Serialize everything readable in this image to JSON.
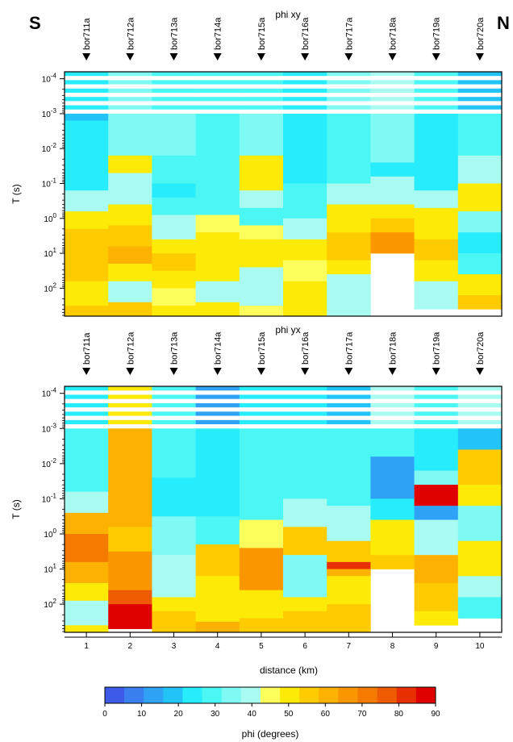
{
  "corner_left": "S",
  "corner_right": "N",
  "colorbar": {
    "label": "phi (degrees)",
    "ticks": [
      0,
      10,
      20,
      30,
      40,
      50,
      60,
      70,
      80,
      90
    ],
    "colors": [
      "#3d5be6",
      "#3a7ff0",
      "#30a2f5",
      "#22c4f7",
      "#27ecfb",
      "#4bf7f5",
      "#7ef9f3",
      "#a9fbf1",
      "#fdfd5c",
      "#fdea07",
      "#fdcb00",
      "#fdb100",
      "#fa9600",
      "#f57a00",
      "#ef5b00",
      "#e82f00",
      "#e00000"
    ]
  },
  "chart_data": [
    {
      "type": "heatmap",
      "title": "phi xy",
      "xlabel": "",
      "ylabel": "T (s)",
      "stations": [
        "bor711a",
        "bor712a",
        "bor713a",
        "bor714a",
        "bor715a",
        "bor716a",
        "bor717a",
        "bor718a",
        "bor719a",
        "bor720a"
      ],
      "yscale": "log",
      "ylim_exp": [
        -4.2,
        2.8
      ],
      "y_ticks": [
        "10^-4",
        "10^-3",
        "10^-2",
        "10^-1",
        "10^0",
        "10^1",
        "10^2"
      ],
      "x_ticks": [
        1,
        2,
        3,
        4,
        5,
        6,
        7,
        8,
        9,
        10
      ],
      "columns": [
        {
          "station": "bor711a",
          "segments": [
            {
              "to_exp": -3.0,
              "phi": 22
            },
            {
              "to_exp": -2.8,
              "phi": 18
            },
            {
              "to_exp": -0.8,
              "phi": 22
            },
            {
              "to_exp": -0.2,
              "phi": 38
            },
            {
              "to_exp": 0.3,
              "phi": 48
            },
            {
              "to_exp": 1.2,
              "phi": 58
            },
            {
              "to_exp": 1.8,
              "phi": 54
            },
            {
              "to_exp": 2.5,
              "phi": 50
            },
            {
              "to_exp": 2.8,
              "phi": 56
            }
          ]
        },
        {
          "station": "bor712a",
          "segments": [
            {
              "to_exp": -2.8,
              "phi": 35
            },
            {
              "to_exp": -1.8,
              "phi": 32
            },
            {
              "to_exp": -1.3,
              "phi": 50
            },
            {
              "to_exp": -0.4,
              "phi": 42
            },
            {
              "to_exp": 0.2,
              "phi": 48
            },
            {
              "to_exp": 0.8,
              "phi": 55
            },
            {
              "to_exp": 1.3,
              "phi": 62
            },
            {
              "to_exp": 1.8,
              "phi": 50
            },
            {
              "to_exp": 2.4,
              "phi": 42
            },
            {
              "to_exp": 2.8,
              "phi": 56
            }
          ]
        },
        {
          "station": "bor713a",
          "segments": [
            {
              "to_exp": -3.0,
              "phi": 27
            },
            {
              "to_exp": -1.8,
              "phi": 32
            },
            {
              "to_exp": -1.0,
              "phi": 28
            },
            {
              "to_exp": -0.6,
              "phi": 22
            },
            {
              "to_exp": -0.1,
              "phi": 30
            },
            {
              "to_exp": 0.6,
              "phi": 40
            },
            {
              "to_exp": 1.0,
              "phi": 50
            },
            {
              "to_exp": 1.5,
              "phi": 58
            },
            {
              "to_exp": 2.0,
              "phi": 52
            },
            {
              "to_exp": 2.5,
              "phi": 45
            },
            {
              "to_exp": 2.8,
              "phi": 50
            }
          ]
        },
        {
          "station": "bor714a",
          "segments": [
            {
              "to_exp": -3.0,
              "phi": 30
            },
            {
              "to_exp": -1.2,
              "phi": 28
            },
            {
              "to_exp": -0.1,
              "phi": 30
            },
            {
              "to_exp": 0.4,
              "phi": 45
            },
            {
              "to_exp": 1.4,
              "phi": 52
            },
            {
              "to_exp": 1.8,
              "phi": 48
            },
            {
              "to_exp": 2.4,
              "phi": 42
            },
            {
              "to_exp": 2.8,
              "phi": 50
            }
          ]
        },
        {
          "station": "bor715a",
          "segments": [
            {
              "to_exp": -3.0,
              "phi": 30
            },
            {
              "to_exp": -1.8,
              "phi": 35
            },
            {
              "to_exp": -0.8,
              "phi": 48
            },
            {
              "to_exp": -0.3,
              "phi": 42
            },
            {
              "to_exp": 0.2,
              "phi": 30
            },
            {
              "to_exp": 0.6,
              "phi": 45
            },
            {
              "to_exp": 1.4,
              "phi": 52
            },
            {
              "to_exp": 2.5,
              "phi": 40
            },
            {
              "to_exp": 2.8,
              "phi": 45
            }
          ]
        },
        {
          "station": "bor716a",
          "segments": [
            {
              "to_exp": -3.0,
              "phi": 24
            },
            {
              "to_exp": -1.0,
              "phi": 22
            },
            {
              "to_exp": 0.0,
              "phi": 30
            },
            {
              "to_exp": 0.6,
              "phi": 38
            },
            {
              "to_exp": 1.2,
              "phi": 52
            },
            {
              "to_exp": 1.8,
              "phi": 44
            },
            {
              "to_exp": 2.8,
              "phi": 50
            }
          ]
        },
        {
          "station": "bor717a",
          "segments": [
            {
              "to_exp": -2.2,
              "phi": 32
            },
            {
              "to_exp": -1.0,
              "phi": 28
            },
            {
              "to_exp": -0.4,
              "phi": 38
            },
            {
              "to_exp": 0.4,
              "phi": 50
            },
            {
              "to_exp": 1.2,
              "phi": 56
            },
            {
              "to_exp": 1.6,
              "phi": 48
            },
            {
              "to_exp": 2.4,
              "phi": 40
            },
            {
              "to_exp": 2.8,
              "phi": 38
            }
          ]
        },
        {
          "station": "bor718a",
          "segments": [
            {
              "to_exp": -3.0,
              "phi": 40
            },
            {
              "to_exp": -1.6,
              "phi": 32
            },
            {
              "to_exp": -1.2,
              "phi": 25
            },
            {
              "to_exp": -0.4,
              "phi": 40
            },
            {
              "to_exp": 0.0,
              "phi": 52
            },
            {
              "to_exp": 0.4,
              "phi": 58
            },
            {
              "to_exp": 1.0,
              "phi": 65
            },
            {
              "to_exp": 1.0,
              "phi": 65
            }
          ]
        },
        {
          "station": "bor719a",
          "segments": [
            {
              "to_exp": -3.0,
              "phi": 30
            },
            {
              "to_exp": -0.8,
              "phi": 22
            },
            {
              "to_exp": -0.3,
              "phi": 38
            },
            {
              "to_exp": 0.6,
              "phi": 48
            },
            {
              "to_exp": 1.2,
              "phi": 56
            },
            {
              "to_exp": 1.8,
              "phi": 48
            },
            {
              "to_exp": 2.6,
              "phi": 40
            }
          ]
        },
        {
          "station": "bor720a",
          "segments": [
            {
              "to_exp": -3.0,
              "phi": 20
            },
            {
              "to_exp": -1.8,
              "phi": 28
            },
            {
              "to_exp": -1.0,
              "phi": 38
            },
            {
              "to_exp": -0.2,
              "phi": 52
            },
            {
              "to_exp": 0.4,
              "phi": 35
            },
            {
              "to_exp": 1.0,
              "phi": 24
            },
            {
              "to_exp": 1.6,
              "phi": 30
            },
            {
              "to_exp": 2.2,
              "phi": 50
            },
            {
              "to_exp": 2.6,
              "phi": 55
            }
          ]
        }
      ]
    },
    {
      "type": "heatmap",
      "title": "phi yx",
      "xlabel": "distance (km)",
      "ylabel": "T (s)",
      "stations": [
        "bor711a",
        "bor712a",
        "bor713a",
        "bor714a",
        "bor715a",
        "bor716a",
        "bor717a",
        "bor718a",
        "bor719a",
        "bor720a"
      ],
      "yscale": "log",
      "ylim_exp": [
        -4.2,
        2.8
      ],
      "y_ticks": [
        "10^-4",
        "10^-3",
        "10^-2",
        "10^-1",
        "10^0",
        "10^1",
        "10^2"
      ],
      "x_ticks": [
        1,
        2,
        3,
        4,
        5,
        6,
        7,
        8,
        9,
        10
      ],
      "columns": [
        {
          "station": "bor711a",
          "segments": [
            {
              "to_exp": -3.0,
              "phi": 22
            },
            {
              "to_exp": -1.2,
              "phi": 28
            },
            {
              "to_exp": -0.6,
              "phi": 40
            },
            {
              "to_exp": 0.0,
              "phi": 60
            },
            {
              "to_exp": 0.8,
              "phi": 72
            },
            {
              "to_exp": 1.4,
              "phi": 62
            },
            {
              "to_exp": 1.9,
              "phi": 48
            },
            {
              "to_exp": 2.6,
              "phi": 40
            },
            {
              "to_exp": 2.8,
              "phi": 52
            }
          ]
        },
        {
          "station": "bor712a",
          "segments": [
            {
              "to_exp": -2.8,
              "phi": 52
            },
            {
              "to_exp": -0.2,
              "phi": 60
            },
            {
              "to_exp": 0.5,
              "phi": 58
            },
            {
              "to_exp": 1.6,
              "phi": 68
            },
            {
              "to_exp": 2.0,
              "phi": 75
            },
            {
              "to_exp": 2.7,
              "phi": 88
            }
          ]
        },
        {
          "station": "bor713a",
          "segments": [
            {
              "to_exp": -3.0,
              "phi": 30
            },
            {
              "to_exp": -1.6,
              "phi": 28
            },
            {
              "to_exp": -0.5,
              "phi": 24
            },
            {
              "to_exp": 0.6,
              "phi": 32
            },
            {
              "to_exp": 1.8,
              "phi": 38
            },
            {
              "to_exp": 2.2,
              "phi": 52
            },
            {
              "to_exp": 2.6,
              "phi": 58
            },
            {
              "to_exp": 2.8,
              "phi": 56
            }
          ]
        },
        {
          "station": "bor714a",
          "segments": [
            {
              "to_exp": -2.6,
              "phi": 15
            },
            {
              "to_exp": -0.5,
              "phi": 22
            },
            {
              "to_exp": 0.3,
              "phi": 30
            },
            {
              "to_exp": 1.2,
              "phi": 56
            },
            {
              "to_exp": 1.8,
              "phi": 52
            },
            {
              "to_exp": 2.5,
              "phi": 48
            },
            {
              "to_exp": 2.8,
              "phi": 60
            }
          ]
        },
        {
          "station": "bor715a",
          "segments": [
            {
              "to_exp": -3.0,
              "phi": 25
            },
            {
              "to_exp": -0.4,
              "phi": 30
            },
            {
              "to_exp": 0.4,
              "phi": 45
            },
            {
              "to_exp": 1.6,
              "phi": 65
            },
            {
              "to_exp": 2.4,
              "phi": 52
            },
            {
              "to_exp": 2.8,
              "phi": 55
            }
          ]
        },
        {
          "station": "bor716a",
          "segments": [
            {
              "to_exp": -2.8,
              "phi": 22
            },
            {
              "to_exp": -1.0,
              "phi": 30
            },
            {
              "to_exp": -0.2,
              "phi": 40
            },
            {
              "to_exp": 0.6,
              "phi": 55
            },
            {
              "to_exp": 1.8,
              "phi": 35
            },
            {
              "to_exp": 2.2,
              "phi": 50
            },
            {
              "to_exp": 2.8,
              "phi": 58
            }
          ]
        },
        {
          "station": "bor717a",
          "segments": [
            {
              "to_exp": -2.4,
              "phi": 20
            },
            {
              "to_exp": -0.8,
              "phi": 28
            },
            {
              "to_exp": 0.2,
              "phi": 38
            },
            {
              "to_exp": 0.8,
              "phi": 54
            },
            {
              "to_exp": 1.0,
              "phi": 84
            },
            {
              "to_exp": 1.2,
              "phi": 60
            },
            {
              "to_exp": 2.0,
              "phi": 48
            },
            {
              "to_exp": 2.8,
              "phi": 54
            }
          ]
        },
        {
          "station": "bor718a",
          "segments": [
            {
              "to_exp": -3.0,
              "phi": 38
            },
            {
              "to_exp": -2.2,
              "phi": 28
            },
            {
              "to_exp": -1.0,
              "phi": 12
            },
            {
              "to_exp": -0.4,
              "phi": 22
            },
            {
              "to_exp": 0.6,
              "phi": 50
            },
            {
              "to_exp": 1.0,
              "phi": 58
            }
          ]
        },
        {
          "station": "bor719a",
          "segments": [
            {
              "to_exp": -2.6,
              "phi": 28
            },
            {
              "to_exp": -1.8,
              "phi": 22
            },
            {
              "to_exp": -1.4,
              "phi": 35
            },
            {
              "to_exp": -0.8,
              "phi": 88
            },
            {
              "to_exp": -0.4,
              "phi": 15
            },
            {
              "to_exp": 0.6,
              "phi": 40
            },
            {
              "to_exp": 1.4,
              "phi": 62
            },
            {
              "to_exp": 2.2,
              "phi": 58
            },
            {
              "to_exp": 2.6,
              "phi": 52
            }
          ]
        },
        {
          "station": "bor720a",
          "segments": [
            {
              "to_exp": -3.0,
              "phi": 40
            },
            {
              "to_exp": -2.4,
              "phi": 20
            },
            {
              "to_exp": -1.4,
              "phi": 56
            },
            {
              "to_exp": -0.8,
              "phi": 48
            },
            {
              "to_exp": 0.2,
              "phi": 35
            },
            {
              "to_exp": 1.2,
              "phi": 52
            },
            {
              "to_exp": 1.8,
              "phi": 42
            },
            {
              "to_exp": 2.4,
              "phi": 30
            }
          ]
        }
      ]
    }
  ]
}
